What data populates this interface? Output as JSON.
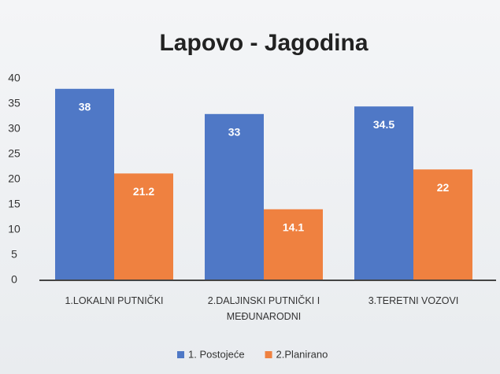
{
  "chart_data": {
    "type": "bar",
    "title": "Lapovo - Jagodina",
    "categories": [
      "1.LOKALNI PUTNIČKI",
      "2.DALJINSKI PUTNIČKI I MEĐUNARODNI",
      "3.TERETNI VOZOVI"
    ],
    "series": [
      {
        "name": "1. Postojeće",
        "color": "#4f78c6",
        "values": [
          38,
          33,
          34.5
        ]
      },
      {
        "name": "2.Planirano",
        "color": "#ef8140",
        "values": [
          21.2,
          14.1,
          22
        ]
      }
    ],
    "ylim": [
      0,
      40
    ],
    "yticks": [
      0,
      5,
      10,
      15,
      20,
      25,
      30,
      35,
      40
    ],
    "grid": false,
    "legend": "bottom"
  }
}
